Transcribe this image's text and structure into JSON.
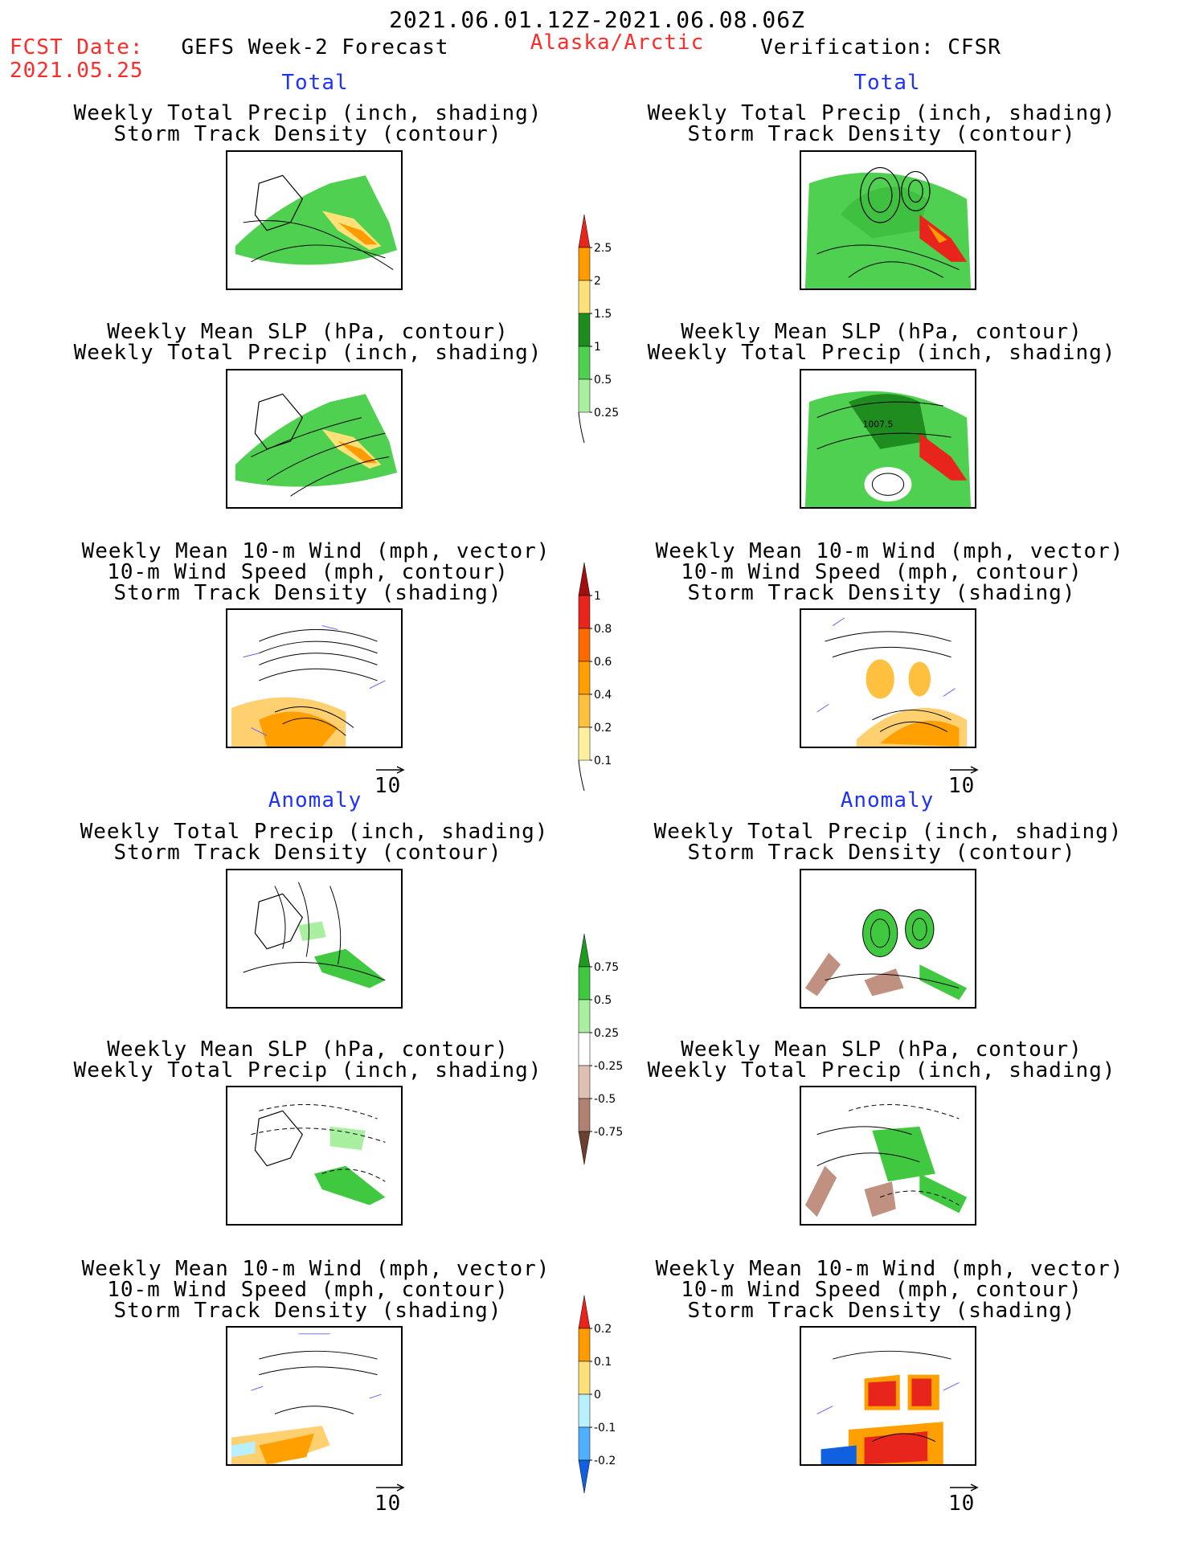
{
  "header": {
    "date_range": "2021.06.01.12Z-2021.06.08.06Z",
    "fcst_label": "FCST Date:",
    "fcst_date": "2021.05.25",
    "left_title": "GEFS Week-2 Forecast",
    "region": "Alaska/Arctic",
    "right_title": "Verification: CFSR"
  },
  "sections": {
    "total": "Total",
    "anomaly": "Anomaly"
  },
  "panel_titles": {
    "precip_storm": [
      "Weekly Total Precip (inch, shading)",
      "Storm Track Density (contour)"
    ],
    "slp_precip": [
      "Weekly Mean SLP (hPa, contour)",
      "Weekly Total Precip (inch, shading)"
    ],
    "wind_storm": [
      "Weekly Mean 10-m Wind (mph, vector)",
      "10-m Wind Speed (mph, contour)",
      "Storm Track Density (shading)"
    ]
  },
  "vector_ref": "10",
  "contour_label": "1007.5",
  "colorbars": {
    "precip_total": {
      "labels": [
        "2.5",
        "2",
        "1.5",
        "1",
        "0.5",
        "0.25"
      ],
      "colors": [
        "#e8251c",
        "#ff9a00",
        "#ffe178",
        "#1f8c1f",
        "#50d050",
        "#a8f0a0"
      ]
    },
    "storm_total": {
      "labels": [
        "1",
        "0.8",
        "0.6",
        "0.4",
        "0.2",
        "0.1"
      ],
      "colors": [
        "#a01010",
        "#e8251c",
        "#ff6a00",
        "#ffa000",
        "#ffc040",
        "#fff0a0"
      ]
    },
    "precip_anom": {
      "labels": [
        "0.75",
        "0.5",
        "0.25",
        "-0.25",
        "-0.5",
        "-0.75"
      ],
      "colors": [
        "#1f9a1f",
        "#40c840",
        "#a8f0a0",
        "#ffffff",
        "#e0c0b0",
        "#b08070",
        "#6a4030"
      ]
    },
    "storm_anom": {
      "labels": [
        "0.2",
        "0.1",
        "0",
        "-0.1",
        "-0.2"
      ],
      "colors": [
        "#e8251c",
        "#ff9a00",
        "#ffe178",
        "#b8f0ff",
        "#50b0ff",
        "#1060e0"
      ]
    }
  }
}
